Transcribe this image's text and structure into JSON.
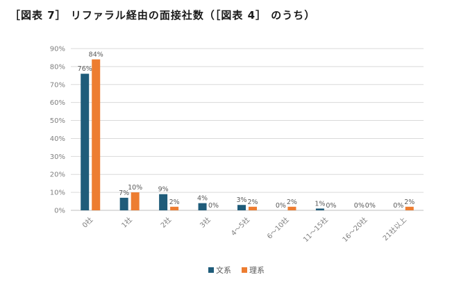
{
  "title": "［図表 7］ リファラル経由の面接社数（［図表 4］ のうち）",
  "colors": {
    "series1": "#1f5c7a",
    "series2": "#ed7d31",
    "grid": "#d9d9d9",
    "axis": "#bfbfbf"
  },
  "chart_data": {
    "type": "bar",
    "title": "［図表 7］ リファラル経由の面接社数（［図表 4］ のうち）",
    "xlabel": "",
    "ylabel": "",
    "ylim": [
      0,
      90
    ],
    "yticks": [
      0,
      10,
      20,
      30,
      40,
      50,
      60,
      70,
      80,
      90
    ],
    "ytick_suffix": "%",
    "grid": true,
    "legend_position": "bottom",
    "categories": [
      "0社",
      "1社",
      "2社",
      "3社",
      "4～5社",
      "6～10社",
      "11～15社",
      "16～20社",
      "21社以上"
    ],
    "series": [
      {
        "name": "文系",
        "values": [
          76,
          7,
          9,
          4,
          3,
          0,
          1,
          0,
          0
        ]
      },
      {
        "name": "理系",
        "values": [
          84,
          10,
          2,
          0,
          2,
          2,
          0,
          0,
          2
        ]
      }
    ]
  }
}
